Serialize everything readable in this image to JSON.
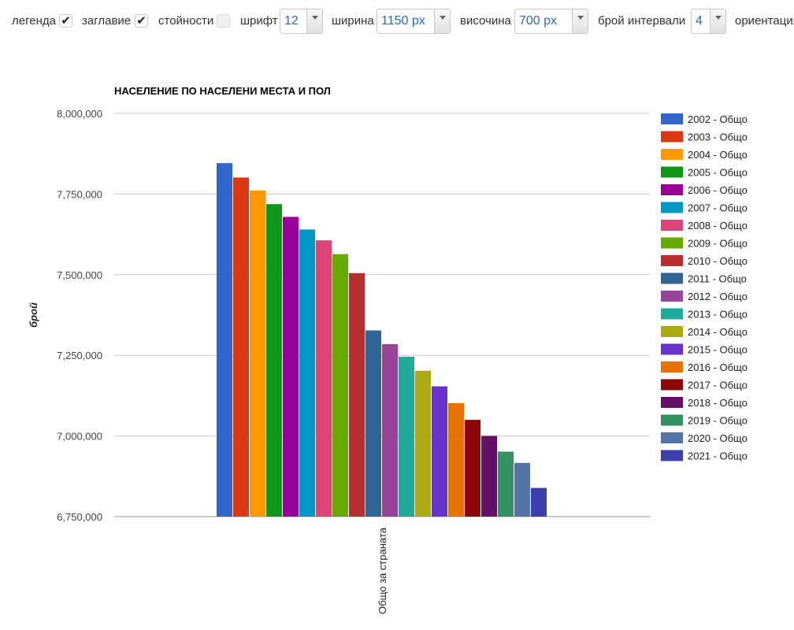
{
  "toolbar": {
    "legend_label": "легенда",
    "legend_checked": true,
    "title_label": "заглавие",
    "title_checked": true,
    "values_label": "стойности",
    "values_checked": false,
    "font_label": "шрифт",
    "font_value": "12",
    "width_label": "ширина",
    "width_value": "1150 px",
    "height_label": "височина",
    "height_value": "700 px",
    "intervals_label": "брой интервали",
    "intervals_value": "4",
    "orientation_label": "ориентация"
  },
  "chart_data": {
    "type": "bar",
    "title": "НАСЕЛЕНИЕ ПО НАСЕЛЕНИ МЕСТА И ПОЛ",
    "xlabel": "",
    "ylabel": "брой",
    "categories": [
      "Общо за страната"
    ],
    "ylim": [
      6750000,
      8000000
    ],
    "yticks": [
      "6,750,000",
      "7,000,000",
      "7,250,000",
      "7,500,000",
      "7,750,000",
      "8,000,000"
    ],
    "ytick_values": [
      6750000,
      7000000,
      7250000,
      7500000,
      7750000,
      8000000
    ],
    "grid": true,
    "legend_position": "right",
    "series": [
      {
        "name": "2002 - Общо",
        "color": "#3366cc",
        "values": [
          7845841
        ]
      },
      {
        "name": "2003 - Общо",
        "color": "#dc3912",
        "values": [
          7801273
        ]
      },
      {
        "name": "2004 - Общо",
        "color": "#ff9900",
        "values": [
          7761049
        ]
      },
      {
        "name": "2005 - Общо",
        "color": "#109618",
        "values": [
          7718750
        ]
      },
      {
        "name": "2006 - Общо",
        "color": "#990099",
        "values": [
          7679290
        ]
      },
      {
        "name": "2007 - Общо",
        "color": "#0099c6",
        "values": [
          7640238
        ]
      },
      {
        "name": "2008 - Общо",
        "color": "#dd4477",
        "values": [
          7606551
        ]
      },
      {
        "name": "2009 - Общо",
        "color": "#66aa00",
        "values": [
          7563710
        ]
      },
      {
        "name": "2010 - Общо",
        "color": "#b82e2e",
        "values": [
          7504868
        ]
      },
      {
        "name": "2011 - Общо",
        "color": "#316395",
        "values": [
          7327224
        ]
      },
      {
        "name": "2012 - Общо",
        "color": "#994499",
        "values": [
          7284552
        ]
      },
      {
        "name": "2013 - Общо",
        "color": "#22aa99",
        "values": [
          7245677
        ]
      },
      {
        "name": "2014 - Общо",
        "color": "#aaaa11",
        "values": [
          7202198
        ]
      },
      {
        "name": "2015 - Общо",
        "color": "#6633cc",
        "values": [
          7153784
        ]
      },
      {
        "name": "2016 - Общо",
        "color": "#e67300",
        "values": [
          7101859
        ]
      },
      {
        "name": "2017 - Общо",
        "color": "#8b0707",
        "values": [
          7050034
        ]
      },
      {
        "name": "2018 - Общо",
        "color": "#651067",
        "values": [
          7000039
        ]
      },
      {
        "name": "2019 - Общо",
        "color": "#329262",
        "values": [
          6951482
        ]
      },
      {
        "name": "2020 - Общо",
        "color": "#5574a6",
        "values": [
          6916548
        ]
      },
      {
        "name": "2021 - Общо",
        "color": "#3b3eac",
        "values": [
          6838937
        ]
      }
    ]
  }
}
